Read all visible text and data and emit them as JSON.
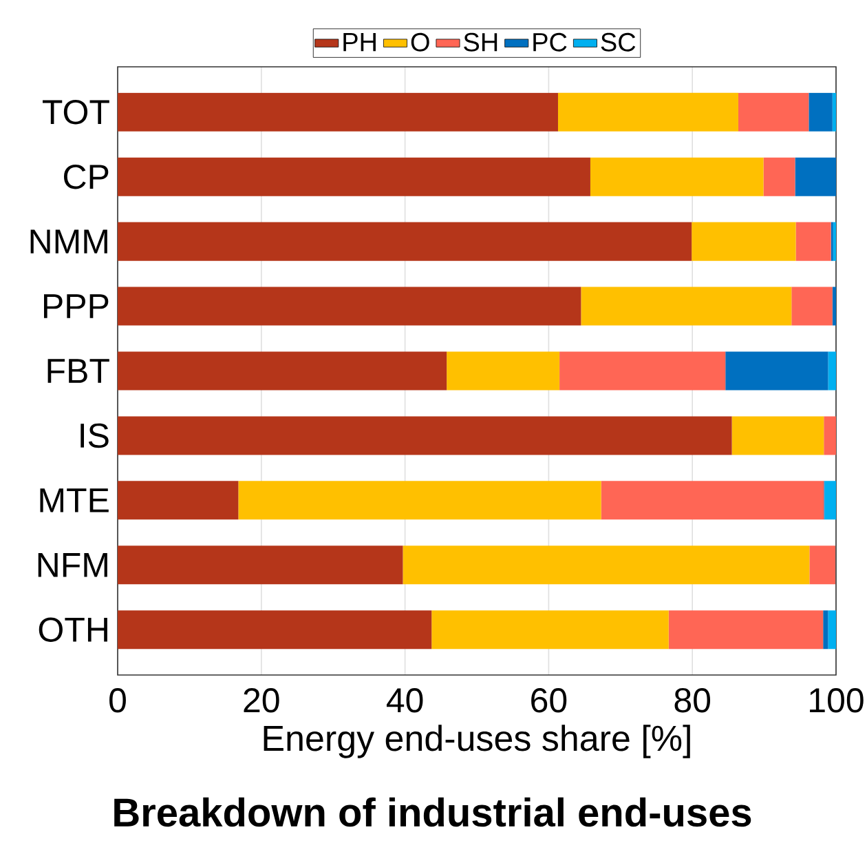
{
  "chart_data": {
    "type": "bar",
    "orientation": "horizontal",
    "stacked": true,
    "title": "Breakdown of industrial end-uses",
    "xlabel": "Energy end-uses share [%]",
    "categories": [
      "TOT",
      "CP",
      "NMM",
      "PPP",
      "FBT",
      "IS",
      "MTE",
      "NFM",
      "OTH"
    ],
    "series": [
      {
        "name": "PH",
        "color": "#b5361a",
        "values": [
          61.3,
          65.8,
          79.9,
          64.5,
          45.8,
          85.5,
          16.8,
          39.7,
          43.7
        ]
      },
      {
        "name": "O",
        "color": "#ffc000",
        "values": [
          25.1,
          24.1,
          14.5,
          29.3,
          15.7,
          12.8,
          50.5,
          56.6,
          33.0
        ]
      },
      {
        "name": "SH",
        "color": "#ff6655",
        "values": [
          9.8,
          4.4,
          4.9,
          5.7,
          23.1,
          1.7,
          31.0,
          3.6,
          21.5
        ]
      },
      {
        "name": "PC",
        "color": "#0070c0",
        "values": [
          3.3,
          5.7,
          0.3,
          0.5,
          14.3,
          0,
          0.1,
          null,
          0.7
        ]
      },
      {
        "name": "SC",
        "color": "#00b0f0",
        "values": [
          0.5,
          0,
          0.4,
          null,
          1.1,
          0,
          1.6,
          0,
          1.1
        ]
      }
    ],
    "xlim": [
      0,
      100
    ],
    "xticks": [
      0,
      20,
      40,
      60,
      80,
      100
    ],
    "grid": "x",
    "legend": "top"
  }
}
